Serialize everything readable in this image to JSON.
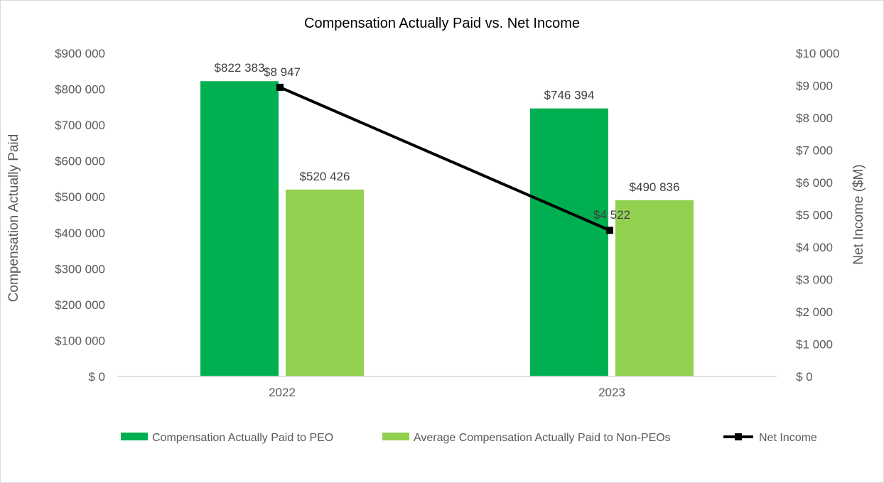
{
  "chart_data": {
    "type": "bar",
    "title": "Compensation Actually Paid vs. Net Income",
    "categories": [
      "2022",
      "2023"
    ],
    "series": [
      {
        "name": "Compensation Actually Paid to PEO",
        "axis": "left",
        "kind": "bar",
        "color": "#00b050",
        "values": [
          822383,
          746394
        ],
        "labels": [
          "$822 383",
          "$746 394"
        ]
      },
      {
        "name": "Average Compensation Actually Paid to Non-PEOs",
        "axis": "left",
        "kind": "bar",
        "color": "#92d050",
        "values": [
          520426,
          490836
        ],
        "labels": [
          "$520 426",
          "$490 836"
        ]
      },
      {
        "name": "Net Income",
        "axis": "right",
        "kind": "line",
        "color": "#000000",
        "marker": "square",
        "values": [
          8947,
          4522
        ],
        "labels": [
          "$8 947",
          "$4 522"
        ]
      }
    ],
    "y_left": {
      "label": "Compensation Actually Paid",
      "ylim": [
        0,
        900000
      ],
      "ticks": [
        0,
        100000,
        200000,
        300000,
        400000,
        500000,
        600000,
        700000,
        800000,
        900000
      ],
      "tick_labels": [
        "$ 0",
        "$100 000",
        "$200 000",
        "$300 000",
        "$400 000",
        "$500 000",
        "$600 000",
        "$700 000",
        "$800 000",
        "$900 000"
      ]
    },
    "y_right": {
      "label": "Net Income ($M)",
      "ylim": [
        0,
        10000
      ],
      "ticks": [
        0,
        1000,
        2000,
        3000,
        4000,
        5000,
        6000,
        7000,
        8000,
        9000,
        10000
      ],
      "tick_labels": [
        "$ 0",
        "$1 000",
        "$2 000",
        "$3 000",
        "$4 000",
        "$5 000",
        "$6 000",
        "$7 000",
        "$8 000",
        "$9 000",
        "$10 000"
      ]
    },
    "grid": false,
    "legend_position": "bottom"
  }
}
